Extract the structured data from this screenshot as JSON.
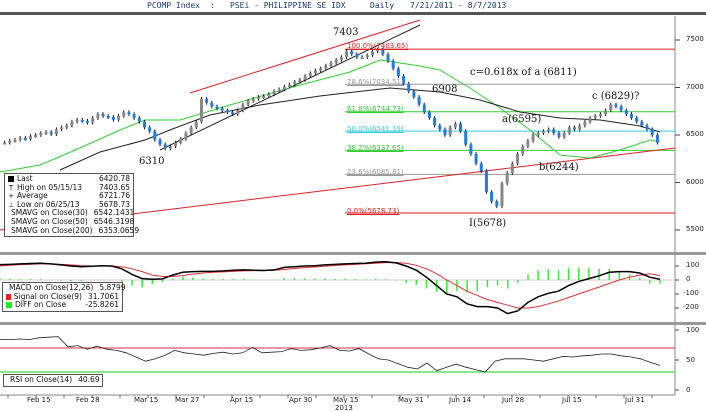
{
  "header": {
    "ticker": "PCOMP Index",
    "separator": ":",
    "name": "PSEi - PHILIPPINE SE IDX",
    "period": "Daily",
    "date_range": "7/21/2011 - 8/7/2013"
  },
  "colors": {
    "up_candle": "#888888",
    "down_candle": "#1e7be0",
    "sma30": "#33cc33",
    "sma50": "#222222",
    "sma200": "#dd2222",
    "fib_100": "#dd2222",
    "fib_786": "#999999",
    "fib_618": "#33cc33",
    "fib_50": "#33ccdd",
    "fib_382": "#33cc33",
    "fib_236": "#999999",
    "fib_0": "#dd2222",
    "rsi_overbought": "#cc3344",
    "rsi_oversold": "#66dd66"
  },
  "price_legend": {
    "items": [
      {
        "icon": "square-black",
        "label": "Last",
        "value": "6420.78"
      },
      {
        "icon": "high-marker",
        "label": "High on 05/15/13",
        "value": "7403.65"
      },
      {
        "icon": "average-marker",
        "label": "Average",
        "value": "6721.76"
      },
      {
        "icon": "low-marker",
        "label": "Low on 06/25/13",
        "value": "5678.73"
      },
      {
        "icon": "square-green",
        "label": "SMAVG on Close(30)",
        "value": "6542.1431"
      },
      {
        "icon": "square-black",
        "label": "SMAVG on Close(50)",
        "value": "6546.3198"
      },
      {
        "icon": "square-red",
        "label": "SMAVG on Close(200)",
        "value": "6353.0659"
      }
    ]
  },
  "macd_legend": {
    "items": [
      {
        "icon": "square-black",
        "label": "MACD on Close(12,26)",
        "value": "5.8799"
      },
      {
        "icon": "square-red",
        "label": "Signal on Close(9)",
        "value": "31.7061"
      },
      {
        "icon": "square-green",
        "label": "DIFF on Close",
        "value": "-25.8261"
      }
    ]
  },
  "rsi_legend": {
    "items": [
      {
        "icon": "square-black",
        "label": "RSI on Close(14)",
        "value": "40.69"
      }
    ]
  },
  "annotations": {
    "peak": "7403",
    "low_mar": "6310",
    "wave_c_target": "c=0.618x of a (6811)",
    "peak_may31": "6908",
    "wave_a": "a(6595)",
    "wave_b": "b(6244)",
    "wave_c": "c (6829)?",
    "wave_i": "I(5678)"
  },
  "fib_labels": [
    {
      "label": "100.0%(7403.65)",
      "color": "#dd2222"
    },
    {
      "label": "78.6%(7034.51)",
      "color": "#999999"
    },
    {
      "label": "61.8%(6744.73)",
      "color": "#33cc33"
    },
    {
      "label": "50.0%(6541.19)",
      "color": "#33ccdd"
    },
    {
      "label": "38.2%(6337.65)",
      "color": "#33cc33"
    },
    {
      "label": "23.6%(6085.81)",
      "color": "#999999"
    },
    {
      "label": "0.0%(5678.73)",
      "color": "#dd2222"
    }
  ],
  "axes": {
    "price_ticks": [
      "7500",
      "7000",
      "6500",
      "6000",
      "5500"
    ],
    "macd_ticks": [
      "100",
      "0",
      "-100",
      "-200"
    ],
    "rsi_ticks": [
      "100",
      "50",
      "0"
    ],
    "x_ticks": [
      "Feb 15",
      "Feb 28",
      "Mar 15",
      "Mar 27",
      "Apr 15",
      "Apr 30",
      "May 15",
      "May 31",
      "Jun 14",
      "Jun 28",
      "Jul 15",
      "Jul 31"
    ],
    "x_year": "2013"
  },
  "chart_data": [
    {
      "type": "candlestick",
      "title": "PCOMP Index : PSEi - PHILIPPINE SE IDX  Daily 7/21/2011 - 8/7/2013",
      "xlabel": "",
      "ylabel": "",
      "ylim": [
        5350,
        7650
      ],
      "x_ticks": [
        "Feb 15",
        "Feb 28",
        "Mar 15",
        "Mar 27",
        "Apr 15",
        "Apr 30",
        "May 15",
        "May 31",
        "Jun 14",
        "Jun 28",
        "Jul 15",
        "Jul 31"
      ],
      "y_ticks": [
        5500,
        6000,
        6500,
        7000,
        7500
      ],
      "close_approx": [
        6420,
        6440,
        6450,
        6470,
        6460,
        6490,
        6500,
        6520,
        6530,
        6510,
        6560,
        6580,
        6600,
        6640,
        6660,
        6650,
        6630,
        6680,
        6720,
        6700,
        6690,
        6660,
        6700,
        6740,
        6720,
        6680,
        6640,
        6580,
        6540,
        6450,
        6400,
        6360,
        6380,
        6420,
        6460,
        6520,
        6580,
        6640,
        6880,
        6840,
        6800,
        6780,
        6760,
        6740,
        6720,
        6760,
        6820,
        6860,
        6880,
        6900,
        6910,
        6930,
        6960,
        6980,
        7010,
        7030,
        7060,
        7080,
        7120,
        7150,
        7180,
        7200,
        7230,
        7260,
        7290,
        7320,
        7380,
        7350,
        7320,
        7320,
        7340,
        7380,
        7400,
        7350,
        7280,
        7200,
        7120,
        7040,
        6960,
        6900,
        6820,
        6740,
        6680,
        6600,
        6560,
        6500,
        6580,
        6620,
        6540,
        6400,
        6300,
        6200,
        6120,
        5900,
        5800,
        5750,
        5990,
        6100,
        6200,
        6300,
        6380,
        6440,
        6500,
        6520,
        6540,
        6560,
        6520,
        6480,
        6520,
        6580,
        6560,
        6600,
        6640,
        6680,
        6700,
        6720,
        6760,
        6820,
        6800,
        6760,
        6720,
        6680,
        6640,
        6600,
        6560,
        6500,
        6420
      ],
      "series": [
        {
          "name": "SMAVG on Close(30)",
          "last": 6542.1431
        },
        {
          "name": "SMAVG on Close(50)",
          "last": 6546.3198
        },
        {
          "name": "SMAVG on Close(200)",
          "last": 6353.0659
        }
      ],
      "fibonacci": [
        {
          "level": "100.0%",
          "value": 7403.65
        },
        {
          "level": "78.6%",
          "value": 7034.51
        },
        {
          "level": "61.8%",
          "value": 6744.73
        },
        {
          "level": "50.0%",
          "value": 6541.19
        },
        {
          "level": "38.2%",
          "value": 6337.65
        },
        {
          "level": "23.6%",
          "value": 6085.81
        },
        {
          "level": "0.0%",
          "value": 5678.73
        }
      ],
      "stats": {
        "last": 6420.78,
        "high": 7403.65,
        "high_date": "05/15/13",
        "average": 6721.76,
        "low": 5678.73,
        "low_date": "06/25/13"
      },
      "annotations": [
        "7403",
        "6310",
        "6908",
        "c=0.618x of a (6811)",
        "a(6595)",
        "b(6244)",
        "c (6829)?",
        "I(5678)"
      ]
    },
    {
      "type": "line",
      "title": "MACD",
      "ylim": [
        -260,
        150
      ],
      "y_ticks": [
        -200,
        -100,
        0,
        100
      ],
      "series": [
        {
          "name": "MACD on Close(12,26)",
          "last": 5.8799,
          "values": [
            110,
            112,
            115,
            118,
            120,
            115,
            108,
            100,
            95,
            98,
            102,
            100,
            80,
            40,
            10,
            5,
            8,
            35,
            55,
            60,
            62,
            62,
            65,
            70,
            72,
            70,
            68,
            72,
            90,
            95,
            100,
            102,
            108,
            112,
            115,
            118,
            120,
            128,
            130,
            122,
            100,
            70,
            20,
            -40,
            -100,
            -120,
            -170,
            -190,
            -190,
            -200,
            -240,
            -220,
            -160,
            -120,
            -95,
            -80,
            -40,
            -10,
            10,
            30,
            55,
            60,
            60,
            50,
            20,
            5
          ]
        },
        {
          "name": "Signal on Close(9)",
          "last": 31.7061,
          "values": [
            100,
            105,
            110,
            112,
            115,
            115,
            112,
            108,
            103,
            100,
            100,
            100,
            95,
            80,
            60,
            35,
            25,
            25,
            32,
            42,
            50,
            55,
            58,
            62,
            65,
            67,
            68,
            69,
            75,
            82,
            88,
            93,
            98,
            104,
            108,
            112,
            116,
            120,
            124,
            125,
            120,
            105,
            80,
            45,
            0,
            -40,
            -80,
            -110,
            -140,
            -160,
            -180,
            -200,
            -200,
            -190,
            -170,
            -150,
            -125,
            -100,
            -75,
            -50,
            -25,
            0,
            20,
            35,
            45,
            31
          ]
        },
        {
          "name": "DIFF on Close",
          "last": -25.8261
        }
      ]
    },
    {
      "type": "line",
      "title": "RSI",
      "ylim": [
        0,
        110
      ],
      "y_ticks": [
        0,
        50,
        100
      ],
      "reference_lines": [
        70,
        30
      ],
      "series": [
        {
          "name": "RSI on Close(14)",
          "last": 40.69,
          "values": [
            84,
            84,
            85,
            84,
            87,
            88,
            89,
            72,
            74,
            68,
            73,
            68,
            66,
            62,
            55,
            48,
            52,
            58,
            66,
            62,
            60,
            58,
            61,
            63,
            60,
            62,
            71,
            62,
            63,
            64,
            69,
            66,
            67,
            70,
            74,
            66,
            65,
            69,
            60,
            52,
            50,
            44,
            38,
            35,
            45,
            32,
            38,
            43,
            38,
            34,
            30,
            48,
            52,
            52,
            52,
            50,
            48,
            52,
            56,
            55,
            57,
            58,
            60,
            60,
            57,
            55,
            52,
            46,
            41
          ]
        }
      ]
    }
  ]
}
